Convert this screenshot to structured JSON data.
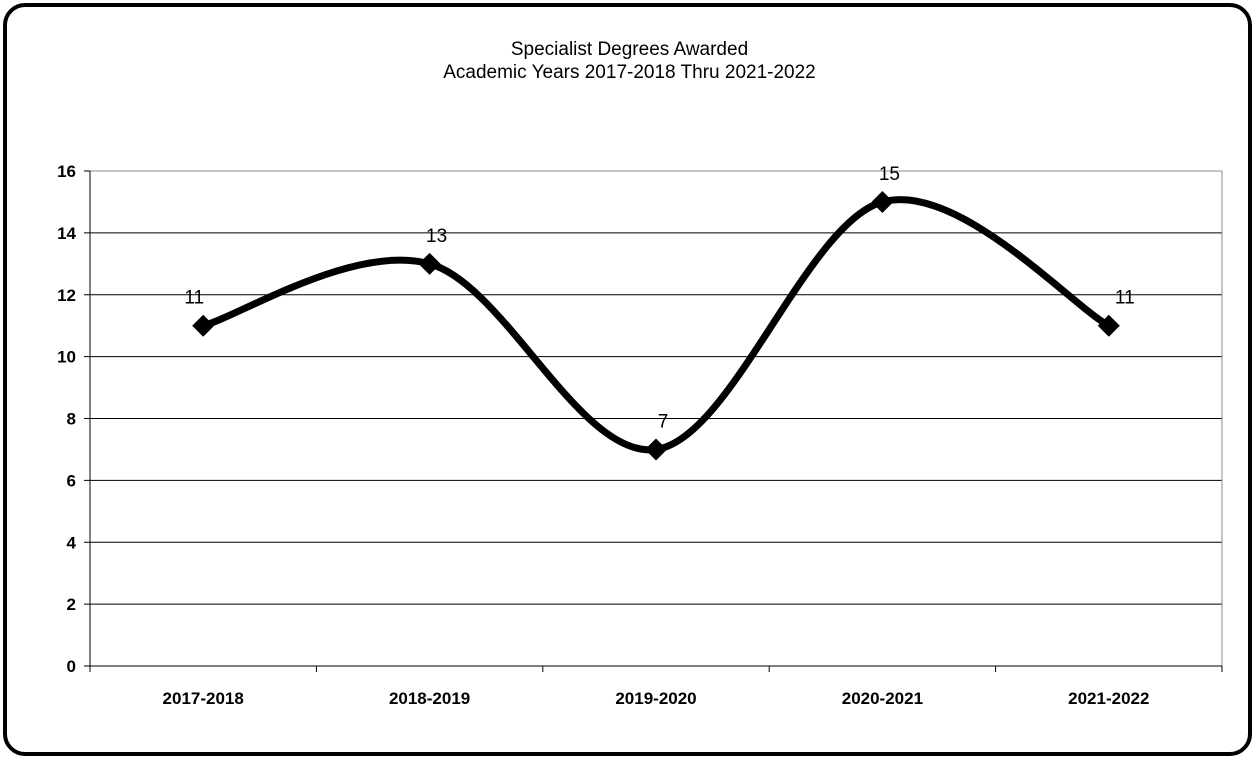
{
  "chart_data": {
    "type": "line",
    "title_lines": [
      "Specialist Degrees Awarded",
      "Academic Years 2017-2018 Thru 2021-2022"
    ],
    "categories": [
      "2017-2018",
      "2018-2019",
      "2019-2020",
      "2020-2021",
      "2021-2022"
    ],
    "series": [
      {
        "values": [
          11,
          13,
          7,
          15,
          11
        ]
      }
    ],
    "data_labels": [
      "11",
      "13",
      "7",
      "15",
      "11"
    ],
    "yticks": [
      "0",
      "2",
      "4",
      "6",
      "8",
      "10",
      "12",
      "14",
      "16"
    ],
    "ylim": [
      0,
      16
    ],
    "grid": true,
    "legend": "none",
    "smoothed": true,
    "marker": "diamond",
    "line_color": "#000000"
  }
}
